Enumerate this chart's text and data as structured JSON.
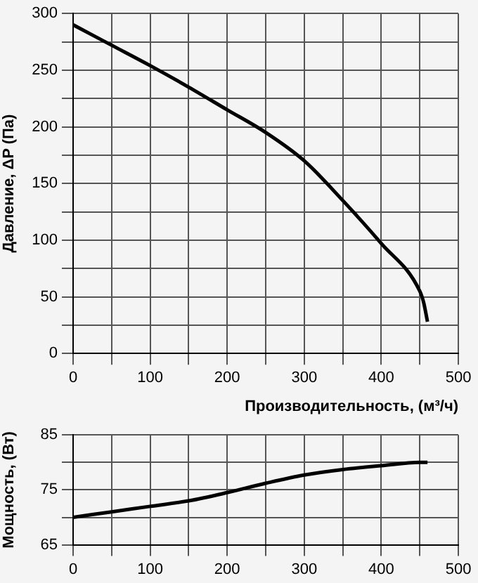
{
  "chart_data": [
    {
      "type": "line",
      "ylabel": "Давление, ΔP (Па)",
      "xlabel": "Производительность, (м³/ч)",
      "grid": true,
      "marker": "none",
      "legend": false,
      "x": [
        0,
        50,
        100,
        150,
        200,
        250,
        300,
        350,
        400,
        450,
        455,
        460
      ],
      "series": [
        {
          "color": "#000000",
          "values": [
            290,
            272,
            254,
            235,
            215,
            195,
            170,
            135,
            97,
            55,
            45,
            28
          ]
        }
      ],
      "xlim": [
        0,
        500
      ],
      "xticks": [
        0,
        {
          "value": 50,
          "label": null
        },
        100,
        {
          "value": 150,
          "label": null
        },
        200,
        {
          "value": 250,
          "label": null
        },
        300,
        {
          "value": 350,
          "label": null
        },
        400,
        {
          "value": 450,
          "label": null
        },
        500
      ],
      "ylim": [
        0,
        300
      ],
      "yticks": [
        0,
        {
          "value": 25,
          "label": null
        },
        50,
        {
          "value": 75,
          "label": null
        },
        100,
        {
          "value": 125,
          "label": null
        },
        150,
        {
          "value": 175,
          "label": null
        },
        200,
        {
          "value": 225,
          "label": null
        },
        250,
        {
          "value": 275,
          "label": null
        },
        300
      ]
    },
    {
      "type": "line",
      "ylabel": "Мощность, (Вт)",
      "grid": true,
      "marker": "none",
      "legend": false,
      "x": [
        0,
        50,
        100,
        150,
        200,
        250,
        300,
        350,
        400,
        450,
        460
      ],
      "series": [
        {
          "color": "#000000",
          "values": [
            70,
            71,
            72,
            73,
            74.5,
            76.2,
            77.7,
            78.7,
            79.4,
            80,
            80
          ]
        }
      ],
      "xlim": [
        0,
        500
      ],
      "xticks": [
        0,
        {
          "value": 50,
          "label": null
        },
        100,
        {
          "value": 150,
          "label": null
        },
        200,
        {
          "value": 250,
          "label": null
        },
        300,
        {
          "value": 350,
          "label": null
        },
        400,
        {
          "value": 450,
          "label": null
        },
        500
      ],
      "ylim": [
        65,
        85
      ],
      "yticks": [
        65,
        {
          "value": 70,
          "label": null
        },
        75,
        {
          "value": 80,
          "label": null
        },
        85
      ]
    }
  ]
}
